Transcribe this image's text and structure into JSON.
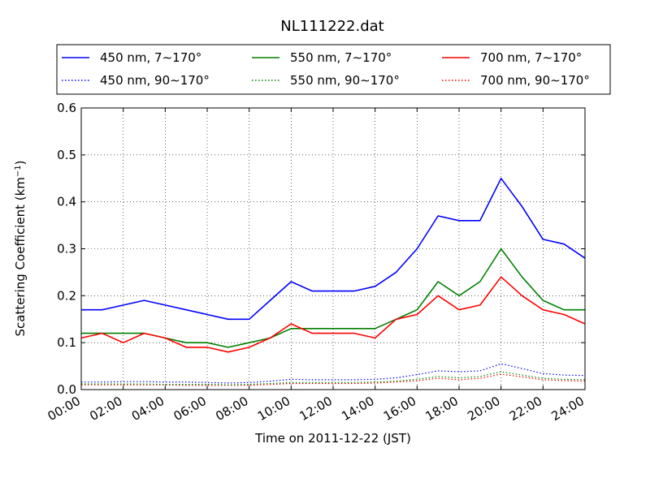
{
  "chart_data": {
    "type": "line",
    "title": "NL111222.dat",
    "xlabel": "Time on 2011-12-22 (JST)",
    "ylabel": "Scattering Coefficient (km",
    "ylabel_sup": "−1",
    "ylabel_close": ")",
    "xlim": [
      0,
      24
    ],
    "ylim": [
      0,
      0.6
    ],
    "grid": true,
    "legend_position": "above plot, 3 columns",
    "x_ticks": [
      {
        "value": 0,
        "label": "00:00"
      },
      {
        "value": 2,
        "label": "02:00"
      },
      {
        "value": 4,
        "label": "04:00"
      },
      {
        "value": 6,
        "label": "06:00"
      },
      {
        "value": 8,
        "label": "08:00"
      },
      {
        "value": 10,
        "label": "10:00"
      },
      {
        "value": 12,
        "label": "12:00"
      },
      {
        "value": 14,
        "label": "14:00"
      },
      {
        "value": 16,
        "label": "16:00"
      },
      {
        "value": 18,
        "label": "18:00"
      },
      {
        "value": 20,
        "label": "20:00"
      },
      {
        "value": 22,
        "label": "22:00"
      },
      {
        "value": 24,
        "label": "24:00"
      }
    ],
    "y_ticks": [
      {
        "value": 0.0,
        "label": "0.0"
      },
      {
        "value": 0.1,
        "label": "0.1"
      },
      {
        "value": 0.2,
        "label": "0.2"
      },
      {
        "value": 0.3,
        "label": "0.3"
      },
      {
        "value": 0.4,
        "label": "0.4"
      },
      {
        "value": 0.5,
        "label": "0.5"
      },
      {
        "value": 0.6,
        "label": "0.6"
      }
    ],
    "x_hours": [
      0,
      1,
      2,
      3,
      4,
      5,
      6,
      7,
      8,
      9,
      10,
      11,
      12,
      13,
      14,
      15,
      16,
      17,
      18,
      19,
      20,
      21,
      22,
      23,
      24
    ],
    "series": [
      {
        "name": "450 nm, 7∼170°",
        "color": "#0000ff",
        "style": "solid",
        "values": [
          0.17,
          0.17,
          0.18,
          0.19,
          0.18,
          0.17,
          0.16,
          0.15,
          0.15,
          0.19,
          0.23,
          0.21,
          0.21,
          0.21,
          0.22,
          0.25,
          0.3,
          0.37,
          0.36,
          0.36,
          0.45,
          0.39,
          0.32,
          0.31,
          0.28
        ]
      },
      {
        "name": "450 nm, 90∼170°",
        "color": "#0000ff",
        "style": "dotted",
        "values": [
          0.016,
          0.016,
          0.017,
          0.017,
          0.016,
          0.016,
          0.015,
          0.014,
          0.015,
          0.018,
          0.022,
          0.021,
          0.021,
          0.021,
          0.022,
          0.025,
          0.032,
          0.04,
          0.038,
          0.04,
          0.055,
          0.045,
          0.034,
          0.031,
          0.03
        ]
      },
      {
        "name": "550 nm, 7∼170°",
        "color": "#008000",
        "style": "solid",
        "values": [
          0.12,
          0.12,
          0.12,
          0.12,
          0.11,
          0.1,
          0.1,
          0.09,
          0.1,
          0.11,
          0.13,
          0.13,
          0.13,
          0.13,
          0.13,
          0.15,
          0.17,
          0.23,
          0.2,
          0.23,
          0.3,
          0.24,
          0.19,
          0.17,
          0.17
        ]
      },
      {
        "name": "550 nm, 90∼170°",
        "color": "#008000",
        "style": "dotted",
        "values": [
          0.012,
          0.012,
          0.012,
          0.012,
          0.011,
          0.011,
          0.011,
          0.01,
          0.011,
          0.013,
          0.015,
          0.015,
          0.015,
          0.015,
          0.016,
          0.018,
          0.022,
          0.028,
          0.025,
          0.028,
          0.038,
          0.031,
          0.024,
          0.022,
          0.021
        ]
      },
      {
        "name": "700 nm, 7∼170°",
        "color": "#ff0000",
        "style": "solid",
        "values": [
          0.11,
          0.12,
          0.1,
          0.12,
          0.11,
          0.09,
          0.09,
          0.08,
          0.09,
          0.11,
          0.14,
          0.12,
          0.12,
          0.12,
          0.11,
          0.15,
          0.16,
          0.2,
          0.17,
          0.18,
          0.24,
          0.2,
          0.17,
          0.16,
          0.14
        ]
      },
      {
        "name": "700 nm, 90∼170°",
        "color": "#ff0000",
        "style": "dotted",
        "values": [
          0.01,
          0.01,
          0.01,
          0.01,
          0.01,
          0.009,
          0.009,
          0.009,
          0.009,
          0.011,
          0.013,
          0.013,
          0.013,
          0.013,
          0.014,
          0.016,
          0.019,
          0.024,
          0.021,
          0.024,
          0.033,
          0.027,
          0.021,
          0.019,
          0.018
        ]
      }
    ]
  }
}
